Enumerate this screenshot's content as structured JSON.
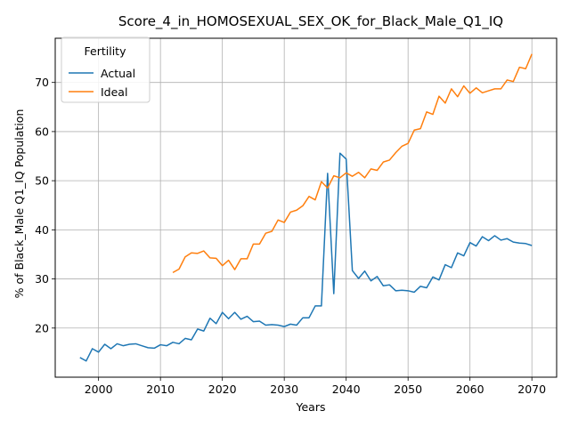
{
  "chart_data": {
    "type": "line",
    "title": "Score_4_in_HOMOSEXUAL_SEX_OK_for_Black_Male_Q1_IQ",
    "xlabel": "Years",
    "ylabel": "% of Black_Male Q1_IQ Population",
    "xlim": [
      1993,
      2074
    ],
    "ylim": [
      10,
      79
    ],
    "x_ticks": [
      2000,
      2010,
      2020,
      2030,
      2040,
      2050,
      2060,
      2070
    ],
    "y_ticks": [
      20,
      30,
      40,
      50,
      60,
      70
    ],
    "grid": true,
    "legend": {
      "title": "Fertility",
      "position": "top-left"
    },
    "series": [
      {
        "name": "Actual",
        "color": "#1f77b4",
        "x": [
          1997,
          1998,
          1999,
          2000,
          2001,
          2002,
          2003,
          2004,
          2005,
          2006,
          2007,
          2008,
          2009,
          2010,
          2011,
          2012,
          2013,
          2014,
          2015,
          2016,
          2017,
          2018,
          2019,
          2020,
          2021,
          2022,
          2023,
          2024,
          2025,
          2026,
          2027,
          2028,
          2029,
          2030,
          2031,
          2032,
          2033,
          2034,
          2035,
          2036,
          2037,
          2038,
          2039,
          2040,
          2041,
          2042,
          2043,
          2044,
          2045,
          2046,
          2047,
          2048,
          2049,
          2050,
          2051,
          2052,
          2053,
          2054,
          2055,
          2056,
          2057,
          2058,
          2059,
          2060,
          2061,
          2062,
          2063,
          2064,
          2065,
          2066,
          2067,
          2068,
          2069,
          2070
        ],
        "values": [
          14.0,
          13.3,
          15.8,
          15.1,
          16.7,
          15.8,
          16.8,
          16.4,
          16.7,
          16.8,
          16.4,
          16.0,
          15.9,
          16.6,
          16.4,
          17.1,
          16.8,
          17.9,
          17.6,
          19.8,
          19.4,
          22.0,
          20.9,
          23.2,
          21.9,
          23.2,
          21.8,
          22.4,
          21.3,
          21.4,
          20.6,
          20.7,
          20.6,
          20.3,
          20.8,
          20.6,
          22.1,
          22.1,
          24.5,
          24.5,
          51.5,
          27.0,
          55.6,
          54.4,
          31.7,
          30.1,
          31.6,
          29.6,
          30.5,
          28.6,
          28.8,
          27.6,
          27.7,
          27.6,
          27.3,
          28.5,
          28.2,
          30.4,
          29.8,
          32.9,
          32.3,
          35.3,
          34.7,
          37.4,
          36.7,
          38.6,
          37.8,
          38.8,
          37.9,
          38.2,
          37.5,
          37.3,
          37.2,
          36.8
        ]
      },
      {
        "name": "Ideal",
        "color": "#ff7f0e",
        "x": [
          2012,
          2013,
          2014,
          2015,
          2016,
          2017,
          2018,
          2019,
          2020,
          2021,
          2022,
          2023,
          2024,
          2025,
          2026,
          2027,
          2028,
          2029,
          2030,
          2031,
          2032,
          2033,
          2034,
          2035,
          2036,
          2037,
          2038,
          2039,
          2040,
          2041,
          2042,
          2043,
          2044,
          2045,
          2046,
          2047,
          2048,
          2049,
          2050,
          2051,
          2052,
          2053,
          2054,
          2055,
          2056,
          2057,
          2058,
          2059,
          2060,
          2061,
          2062,
          2063,
          2064,
          2065,
          2066,
          2067,
          2068,
          2069,
          2070
        ],
        "values": [
          31.3,
          32.0,
          34.5,
          35.3,
          35.2,
          35.7,
          34.3,
          34.2,
          32.7,
          33.8,
          31.9,
          34.1,
          34.1,
          37.1,
          37.1,
          39.3,
          39.7,
          42.0,
          41.5,
          43.6,
          44.0,
          44.9,
          46.8,
          46.1,
          49.8,
          48.5,
          51.0,
          50.6,
          51.6,
          50.9,
          51.7,
          50.6,
          52.4,
          52.1,
          53.8,
          54.2,
          55.7,
          57.0,
          57.6,
          60.3,
          60.6,
          64.0,
          63.5,
          67.2,
          65.8,
          68.7,
          67.1,
          69.3,
          67.8,
          68.9,
          67.9,
          68.3,
          68.7,
          68.7,
          70.5,
          70.2,
          73.1,
          72.8,
          75.8
        ]
      }
    ]
  }
}
